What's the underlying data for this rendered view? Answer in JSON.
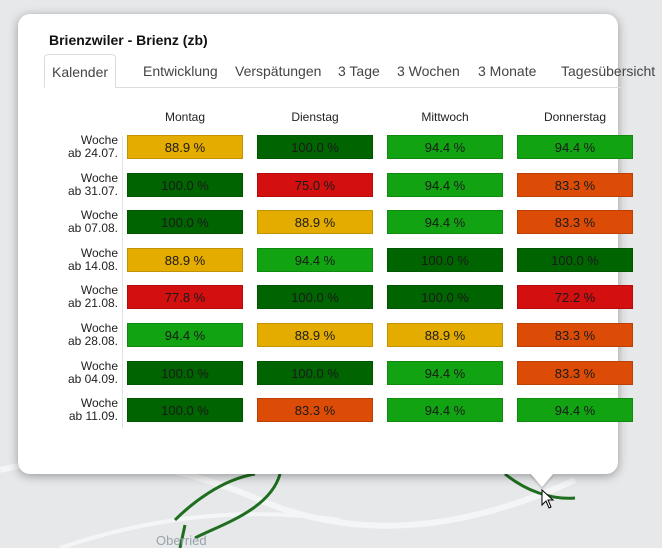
{
  "map": {
    "label": "Oberried"
  },
  "popup": {
    "title": "Brienzwiler - Brienz (zb)",
    "tabs": [
      {
        "label": "Kalender"
      },
      {
        "label": "Entwicklung"
      },
      {
        "label": "Verspätungen"
      },
      {
        "label": "3 Tage"
      },
      {
        "label": "3 Wochen"
      },
      {
        "label": "3 Monate"
      },
      {
        "label": "Tagesübersicht"
      }
    ],
    "active_tab": "Kalender",
    "days": [
      "Montag",
      "Dienstag",
      "Mittwoch",
      "Donnerstag"
    ],
    "weeks": [
      {
        "line1": "Woche",
        "line2": "ab 24.07.",
        "values": [
          "88.9 %",
          "100.0 %",
          "94.4 %",
          "94.4 %"
        ]
      },
      {
        "line1": "Woche",
        "line2": "ab 31.07.",
        "values": [
          "100.0 %",
          "75.0 %",
          "94.4 %",
          "83.3 %"
        ]
      },
      {
        "line1": "Woche",
        "line2": "ab 07.08.",
        "values": [
          "100.0 %",
          "88.9 %",
          "94.4 %",
          "83.3 %"
        ]
      },
      {
        "line1": "Woche",
        "line2": "ab 14.08.",
        "values": [
          "88.9 %",
          "94.4 %",
          "100.0 %",
          "100.0 %"
        ]
      },
      {
        "line1": "Woche",
        "line2": "ab 21.08.",
        "values": [
          "77.8 %",
          "100.0 %",
          "100.0 %",
          "72.2 %"
        ]
      },
      {
        "line1": "Woche",
        "line2": "ab 28.08.",
        "values": [
          "94.4 %",
          "88.9 %",
          "88.9 %",
          "83.3 %"
        ]
      },
      {
        "line1": "Woche",
        "line2": "ab 04.09.",
        "values": [
          "100.0 %",
          "100.0 %",
          "94.4 %",
          "83.3 %"
        ]
      },
      {
        "line1": "Woche",
        "line2": "ab 11.09.",
        "values": [
          "100.0 %",
          "83.3 %",
          "94.4 %",
          "94.4 %"
        ]
      }
    ]
  },
  "colors": {
    "perfect": "#006400",
    "good": "#12a312",
    "medium": "#e5ac00",
    "weak": "#dc4c06",
    "bad": "#d40f0f",
    "route": "#1f6e1f"
  }
}
